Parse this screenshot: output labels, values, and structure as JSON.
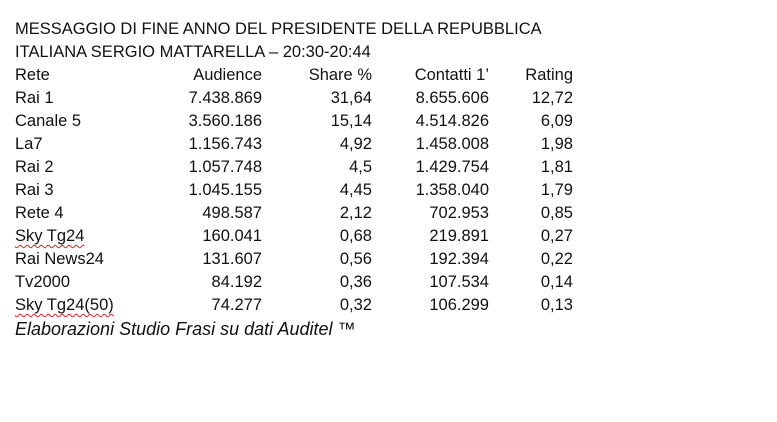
{
  "document": {
    "title_lines": [
      "MESSAGGIO DI FINE ANNO DEL PRESIDENTE DELLA REPUBBLICA",
      "ITALIANA SERGIO MATTARELLA – 20:30-20:44"
    ],
    "footnote": "Elaborazioni Studio Frasi su dati Auditel ™"
  },
  "table": {
    "headers": [
      "Rete",
      "Audience",
      "Share %",
      "Contatti 1’",
      "Rating"
    ],
    "rows": [
      [
        "Rai 1",
        "7.438.869",
        "31,64",
        "8.655.606",
        "12,72"
      ],
      [
        "Canale 5",
        "3.560.186",
        "15,14",
        "4.514.826",
        "6,09"
      ],
      [
        "La7",
        "1.156.743",
        "4,92",
        "1.458.008",
        "1,98"
      ],
      [
        "Rai 2",
        "1.057.748",
        "4,5",
        "1.429.754",
        "1,81"
      ],
      [
        "Rai 3",
        "1.045.155",
        "4,45",
        "1.358.040",
        "1,79"
      ],
      [
        "Rete 4",
        "498.587",
        "2,12",
        "702.953",
        "0,85"
      ],
      [
        "Sky Tg24",
        "160.041",
        "0,68",
        "219.891",
        "0,27"
      ],
      [
        "Rai News24",
        "131.607",
        "0,56",
        "192.394",
        "0,22"
      ],
      [
        "Tv2000",
        "84.192",
        "0,36",
        "107.534",
        "0,14"
      ],
      [
        "Sky Tg24(50)",
        "74.277",
        "0,32",
        "106.299",
        "0,13"
      ]
    ]
  }
}
